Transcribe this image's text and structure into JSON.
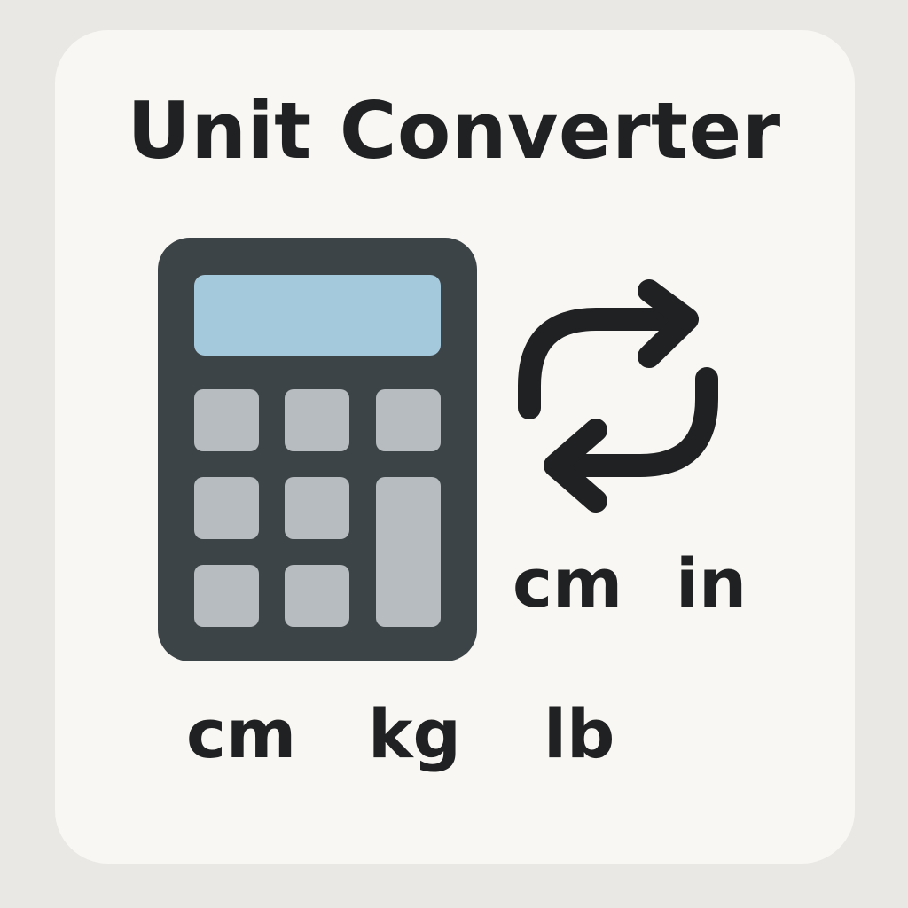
{
  "title": "Unit Converter",
  "icons": {
    "calculator": "calculator-icon",
    "swap": "swap-arrows-icon"
  },
  "colors": {
    "background": "#e9e8e4",
    "card": "#f8f7f3",
    "calculator_body": "#3d4448",
    "calculator_display": "#a5c9dc",
    "calculator_keys": "#b6bcbf",
    "text": "#1f2122"
  },
  "conversion_pair": {
    "from": "cm",
    "to": "in"
  },
  "units": [
    "cm",
    "kg",
    "lb"
  ]
}
